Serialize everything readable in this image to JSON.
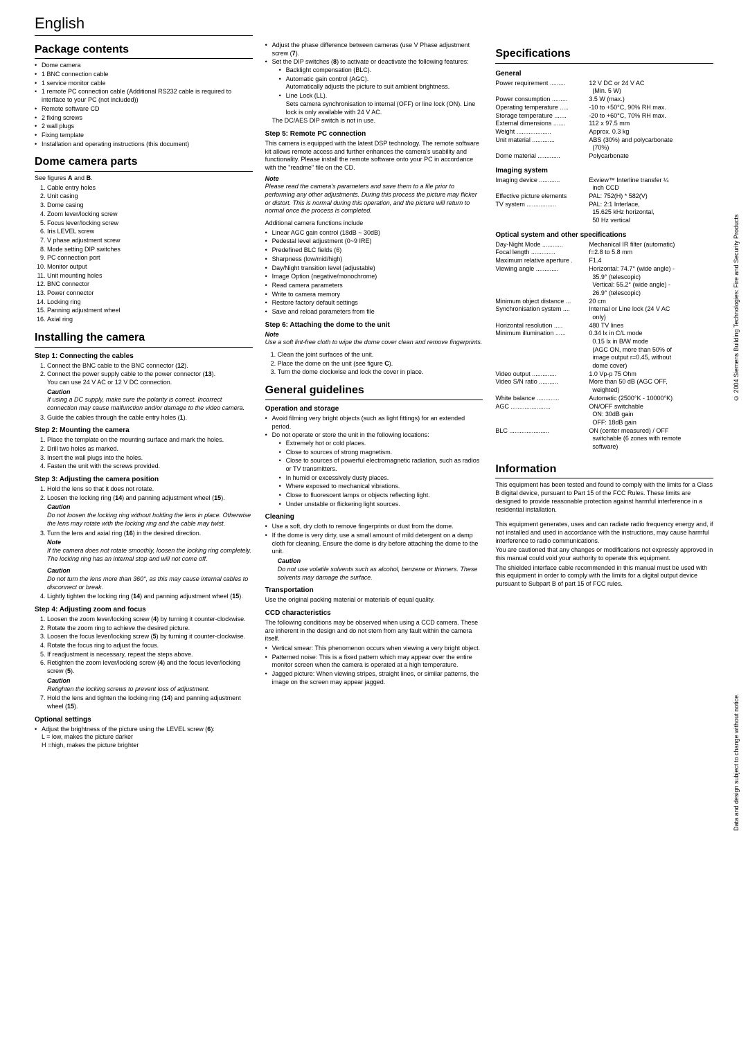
{
  "lang_title": "English",
  "sections": {
    "package": {
      "title": "Package contents",
      "items": [
        "Dome camera",
        "1 BNC connection cable",
        "1 service monitor cable",
        "1 remote PC connection cable (Additional RS232 cable is required to interface to your PC (not included))",
        "Remote software CD",
        "2 fixing screws",
        "2 wall plugs",
        "Fixing template",
        "Installation and operating instructions (this document)"
      ]
    },
    "dome_parts": {
      "title": "Dome camera parts",
      "lead": "See figures A and B.",
      "items": [
        "Cable entry holes",
        "Unit casing",
        "Dome casing",
        "Zoom lever/locking screw",
        "Focus lever/locking screw",
        "Iris LEVEL screw",
        "V phase adjustment screw",
        "Mode setting DIP switches",
        "PC connection port",
        "Monitor output",
        "Unit mounting holes",
        "BNC connector",
        "Power connector",
        "Locking ring",
        "Panning adjustment wheel",
        "Axial ring"
      ]
    },
    "installing": {
      "title": "Installing the camera",
      "step1": {
        "title": "Step 1: Connecting the cables",
        "n1": "Connect the BNC cable to the BNC connector (12).",
        "n2": "Connect the power supply cable to the power connector (13).",
        "n2b": "You can use 24 V AC or 12 V DC connection.",
        "caution": "Caution",
        "caution_txt": "If using a DC supply, make sure the polarity is correct. Incorrect connection may cause malfunction and/or damage to the video camera.",
        "n3": "Guide the cables through the cable entry holes (1)."
      },
      "step2": {
        "title": "Step 2: Mounting the camera",
        "items": [
          "Place the template on the mounting surface and mark the holes.",
          "Drill two holes as marked.",
          "Insert the wall plugs into the holes.",
          "Fasten the unit with the screws provided."
        ]
      },
      "step3": {
        "title": "Step 3: Adjusting the camera position",
        "n1": "Hold the lens so that it does not rotate.",
        "n2": "Loosen the locking ring (14) and panning adjustment wheel (15).",
        "caution": "Caution",
        "caution_txt": "Do not loosen the locking ring without holding the lens in place. Otherwise the lens may rotate with the locking ring and the cable may twist.",
        "n3": "Turn the lens and axial ring (16) in the desired direction.",
        "note": "Note",
        "note_txt": "If the camera does not rotate smoothly, loosen the locking ring completely. The locking ring has an internal stop and will not come off.",
        "caution2": "Caution",
        "caution2_txt": "Do not turn the lens more than 360°, as this may cause internal cables to disconnect or break.",
        "n4": "Lightly tighten the locking ring (14) and panning adjustment wheel (15)."
      },
      "step4": {
        "title": "Step 4: Adjusting zoom and focus",
        "items": [
          "Loosen the zoom lever/locking screw (4) by turning it counter-clockwise.",
          "Rotate the zoom ring to achieve the desired picture.",
          "Loosen the focus lever/locking screw (5) by turning it counter-clockwise.",
          "Rotate the focus ring to adjust the focus.",
          "If readjustment is necessary, repeat the steps above.",
          "Retighten the zoom lever/locking screw (4) and the focus lever/locking screw (5)."
        ],
        "caution": "Caution",
        "caution_txt": "Retighten the locking screws to prevent loss of adjustment.",
        "n7": "Hold the lens and tighten the locking ring (14) and panning adjustment wheel (15)."
      },
      "optional": {
        "title": "Optional settings",
        "b1": "Adjust the brightness of the picture using the LEVEL screw (6):",
        "l1": "L = low, makes the picture darker",
        "l2": "H =high, makes the picture brighter"
      }
    },
    "col2": {
      "b1": "Adjust the phase difference between cameras (use V Phase adjustment screw (7).",
      "b2": "Set the DIP switches (8) to activate or deactivate the following features:",
      "sub": [
        "Backlight compensation (BLC).",
        "Automatic gain control (AGC). Automatically adjusts the picture to suit ambient brightness.",
        "Line Lock (LL). Sets camera synchronisation to internal (OFF) or line lock (ON). Line lock is only available with 24 V AC."
      ],
      "tail": "The DC/AES DIP switch is not in use.",
      "step5": {
        "title": "Step 5: Remote PC connection",
        "p1": "This camera is equipped with the latest DSP technology. The remote software kit allows remote access and further enhances the camera's usability and functionality. Please install the remote software onto your PC in accordance with the \"readme\" file on the CD.",
        "note": "Note",
        "note_txt": "Please read the camera's parameters and save them to a file prior to performing any other adjustments. During this process the picture may flicker or distort. This is normal during this operation, and the picture will return to normal once the process is completed.",
        "p2": "Additional camera functions include",
        "items": [
          "Linear AGC gain control (18dB ~ 30dB)",
          "Pedestal level adjustment  (0~9 IRE)",
          "Predefined BLC fields (6)",
          "Sharpness (low/mid/high)",
          "Day/Night transition level (adjustable)",
          "Image Option (negative/monochrome)",
          "Read camera parameters",
          "Write to camera memory",
          "Restore factory default settings",
          "Save and reload parameters from file"
        ]
      },
      "step6": {
        "title": "Step 6: Attaching the dome to the unit",
        "note": "Note",
        "note_txt": "Use a soft lint-free cloth to wipe the dome cover clean and remove fingerprints.",
        "items": [
          "Clean the joint surfaces of the unit.",
          "Place the dome on the unit (see figure C).",
          "Turn the dome clockwise and lock the cover in place."
        ]
      }
    },
    "guidelines": {
      "title": "General guidelines",
      "op": {
        "title": "Operation and storage",
        "b1": "Avoid filming very bright objects (such as light fittings) for an extended period.",
        "b2": "Do not operate or store the unit in the following locations:",
        "sub": [
          "Extremely hot or cold places.",
          "Close to sources of strong magnetism.",
          "Close to sources of powerful electromagnetic radiation, such as radios or TV transmitters.",
          "In humid or excessively dusty places.",
          "Where exposed to mechanical vibrations.",
          "Close to fluorescent lamps or objects reflecting light.",
          "Under unstable or flickering light sources."
        ]
      },
      "cleaning": {
        "title": "Cleaning",
        "b1": "Use a soft, dry cloth to remove fingerprints or dust from the dome.",
        "b2": "If the dome is very dirty, use a small amount of mild detergent on a damp cloth for cleaning. Ensure the dome is dry before attaching the dome to the unit.",
        "caution": "Caution",
        "caution_txt": "Do not use volatile solvents such as alcohol, benzene or thinners. These solvents may damage the surface."
      },
      "transport": {
        "title": "Transportation",
        "p1": "Use the original packing material or materials of equal quality."
      },
      "ccd": {
        "title": "CCD characteristics",
        "p1": "The following conditions may be observed when using a CCD camera. These are inherent in the design and do not stem from any fault within the camera itself.",
        "items": [
          "Vertical smear: This phenomenon occurs when viewing a very bright object.",
          "Patterned noise: This is a fixed pattern which may appear over the entire monitor screen when the camera is operated at a high temperature.",
          "Jagged picture: When viewing stripes, straight lines, or similar patterns, the image on the screen may appear jagged."
        ]
      }
    },
    "specs": {
      "title": "Specifications",
      "general": {
        "title": "General",
        "rows": [
          {
            "k": "Power requirement",
            "v": "12 V DC or 24 V AC",
            "c": "(Min. 5 W)"
          },
          {
            "k": "Power consumption",
            "v": "3.5 W (max.)"
          },
          {
            "k": "Operating temperature",
            "v": "-10 to +50°C, 90% RH max."
          },
          {
            "k": "Storage temperature",
            "v": "-20 to +60°C, 70% RH max."
          },
          {
            "k": "External dimensions",
            "v": "112 x 97.5 mm"
          },
          {
            "k": "Weight",
            "v": "Approx. 0.3 kg"
          },
          {
            "k": "Unit material",
            "v": "ABS (30%) and polycarbonate",
            "c": "(70%)"
          },
          {
            "k": "Dome material",
            "v": "Polycarbonate"
          }
        ]
      },
      "imaging": {
        "title": "Imaging system",
        "rows": [
          {
            "k": "Imaging device",
            "v": "Exview™ Interline transfer ¼",
            "c": "inch CCD"
          },
          {
            "k": "Effective picture elements",
            "v": "PAL: 752(H) * 582(V)"
          },
          {
            "k": "TV system",
            "v": "PAL: 2:1 Interlace,",
            "c": "15.625 kHz horizontal,",
            "c2": "50 Hz vertical"
          }
        ]
      },
      "optical": {
        "title": "Optical system and other specifications",
        "rows": [
          {
            "k": "Day-Night Mode",
            "v": "Mechanical IR filter (automatic)"
          },
          {
            "k": "Focal length",
            "v": "f=2.8 to 5.8 mm"
          },
          {
            "k": "Maximum relative aperture",
            "v": "F1.4"
          },
          {
            "k": "Viewing angle",
            "v": "Horizontal: 74.7° (wide angle) -",
            "c": "35.9° (telescopic)",
            "c2": "Vertical: 55.2° (wide angle) -",
            "c3": "26.9° (telescopic)"
          },
          {
            "k": "Minimum object distance",
            "v": "20 cm"
          },
          {
            "k": "Synchronisation system",
            "v": "Internal or Line lock (24 V AC",
            "c": "only)"
          },
          {
            "k": "Horizontal resolution",
            "v": "480 TV lines"
          },
          {
            "k": "Minimum illumination",
            "v": "0.34 lx in C/L mode",
            "c": "0.15 lx in B/W mode",
            "c2": "(AGC ON, more than 50% of",
            "c3": "image output r=0.45, without",
            "c4": "dome cover)"
          },
          {
            "k": "Video output",
            "v": "1.0 Vp-p 75 Ohm"
          },
          {
            "k": "Video S/N ratio",
            "v": "More than 50 dB (AGC OFF,",
            "c": "weighted)"
          },
          {
            "k": "White balance",
            "v": "Automatic (2500°K - 10000°K)"
          },
          {
            "k": "AGC",
            "v": "ON/OFF switchable",
            "c": "ON: 30dB gain",
            "c2": "OFF: 18dB gain"
          },
          {
            "k": "BLC",
            "v": "ON (center measured) / OFF",
            "c": "switchable (6 zones with remote",
            "c2": "software)"
          }
        ]
      }
    },
    "info": {
      "title": "Information",
      "p1": "This equipment has been tested and found to comply with the limits for a Class B digital device, pursuant to Part 15 of the FCC Rules. These limits are designed to provide reasonable protection against harmful interference in a residential installation.",
      "p2": "This equipment generates, uses and can radiate radio frequency energy and, if not installed and used in accordance with the instructions, may cause harmful interference to radio communications.",
      "p3": "You are cautioned that any changes or modifications not expressly approved in this manual could void your authority to operate this equipment.",
      "p4": "The shielded interface cable recommended in this manual must be used with this equipment in order to comply with the limits for a digital output device pursuant to Subpart B of part 15 of FCC rules."
    },
    "side1": "© 2004 Siemens Building Technologies: Fire and Security Products",
    "side2": "Data and design subject to change without notice."
  }
}
